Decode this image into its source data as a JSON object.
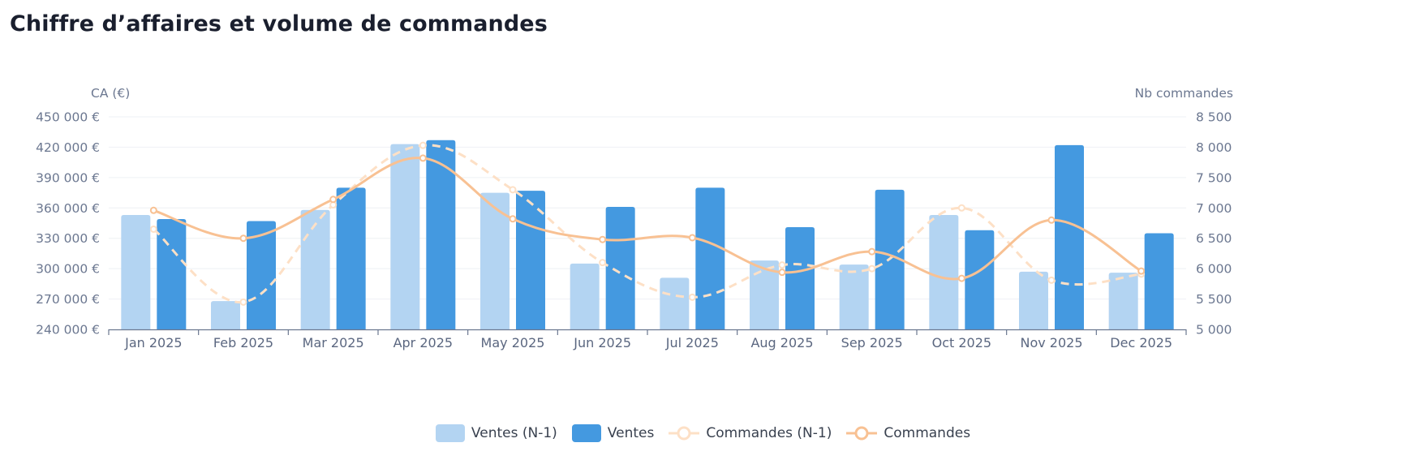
{
  "header": {
    "title": "Chiffre d’affaires et volume de commandes"
  },
  "chart_data": {
    "type": "bar",
    "title": "Chiffre d’affaires et volume de commandes",
    "categories": [
      "Jan 2025",
      "Feb 2025",
      "Mar 2025",
      "Apr 2025",
      "May 2025",
      "Jun 2025",
      "Jul 2025",
      "Aug 2025",
      "Sep 2025",
      "Oct 2025",
      "Nov 2025",
      "Dec 2025"
    ],
    "y_left": {
      "label": "CA (€)",
      "min": 240000,
      "max": 450000,
      "ticks": [
        240000,
        270000,
        300000,
        330000,
        360000,
        390000,
        420000,
        450000
      ],
      "tick_labels": [
        "240 000 €",
        "270 000 €",
        "300 000 €",
        "330 000 €",
        "360 000 €",
        "390 000 €",
        "420 000 €",
        "450 000 €"
      ]
    },
    "y_right": {
      "label": "Nb commandes",
      "min": 5000,
      "max": 8500,
      "ticks": [
        5000,
        5500,
        6000,
        6500,
        7000,
        7500,
        8000,
        8500
      ],
      "tick_labels": [
        "5 000",
        "5 500",
        "6 000",
        "6 500",
        "7 000",
        "7 500",
        "8 000",
        "8 500"
      ]
    },
    "series": [
      {
        "name": "Ventes (N-1)",
        "type": "bar",
        "axis": "left",
        "color": "#b3d4f2",
        "values": [
          353000,
          268000,
          358000,
          423000,
          375000,
          305000,
          291000,
          308000,
          304000,
          353000,
          297000,
          296000
        ]
      },
      {
        "name": "Ventes",
        "type": "bar",
        "axis": "left",
        "color": "#4499e0",
        "values": [
          349000,
          347000,
          380000,
          427000,
          377000,
          361000,
          380000,
          341000,
          378000,
          338000,
          422000,
          335000
        ]
      },
      {
        "name": "Commandes (N-1)",
        "type": "line",
        "axis": "right",
        "color": "#fde0c6",
        "dashed": true,
        "values": [
          6650,
          5450,
          7050,
          8030,
          7300,
          6100,
          5530,
          6060,
          6000,
          7000,
          5810,
          5910
        ]
      },
      {
        "name": "Commandes",
        "type": "line",
        "axis": "right",
        "color": "#f8c193",
        "dashed": false,
        "values": [
          6960,
          6500,
          7140,
          7820,
          6820,
          6480,
          6510,
          5940,
          6280,
          5840,
          6800,
          5960
        ]
      }
    ],
    "grid": true,
    "legend": "bottom-center"
  }
}
